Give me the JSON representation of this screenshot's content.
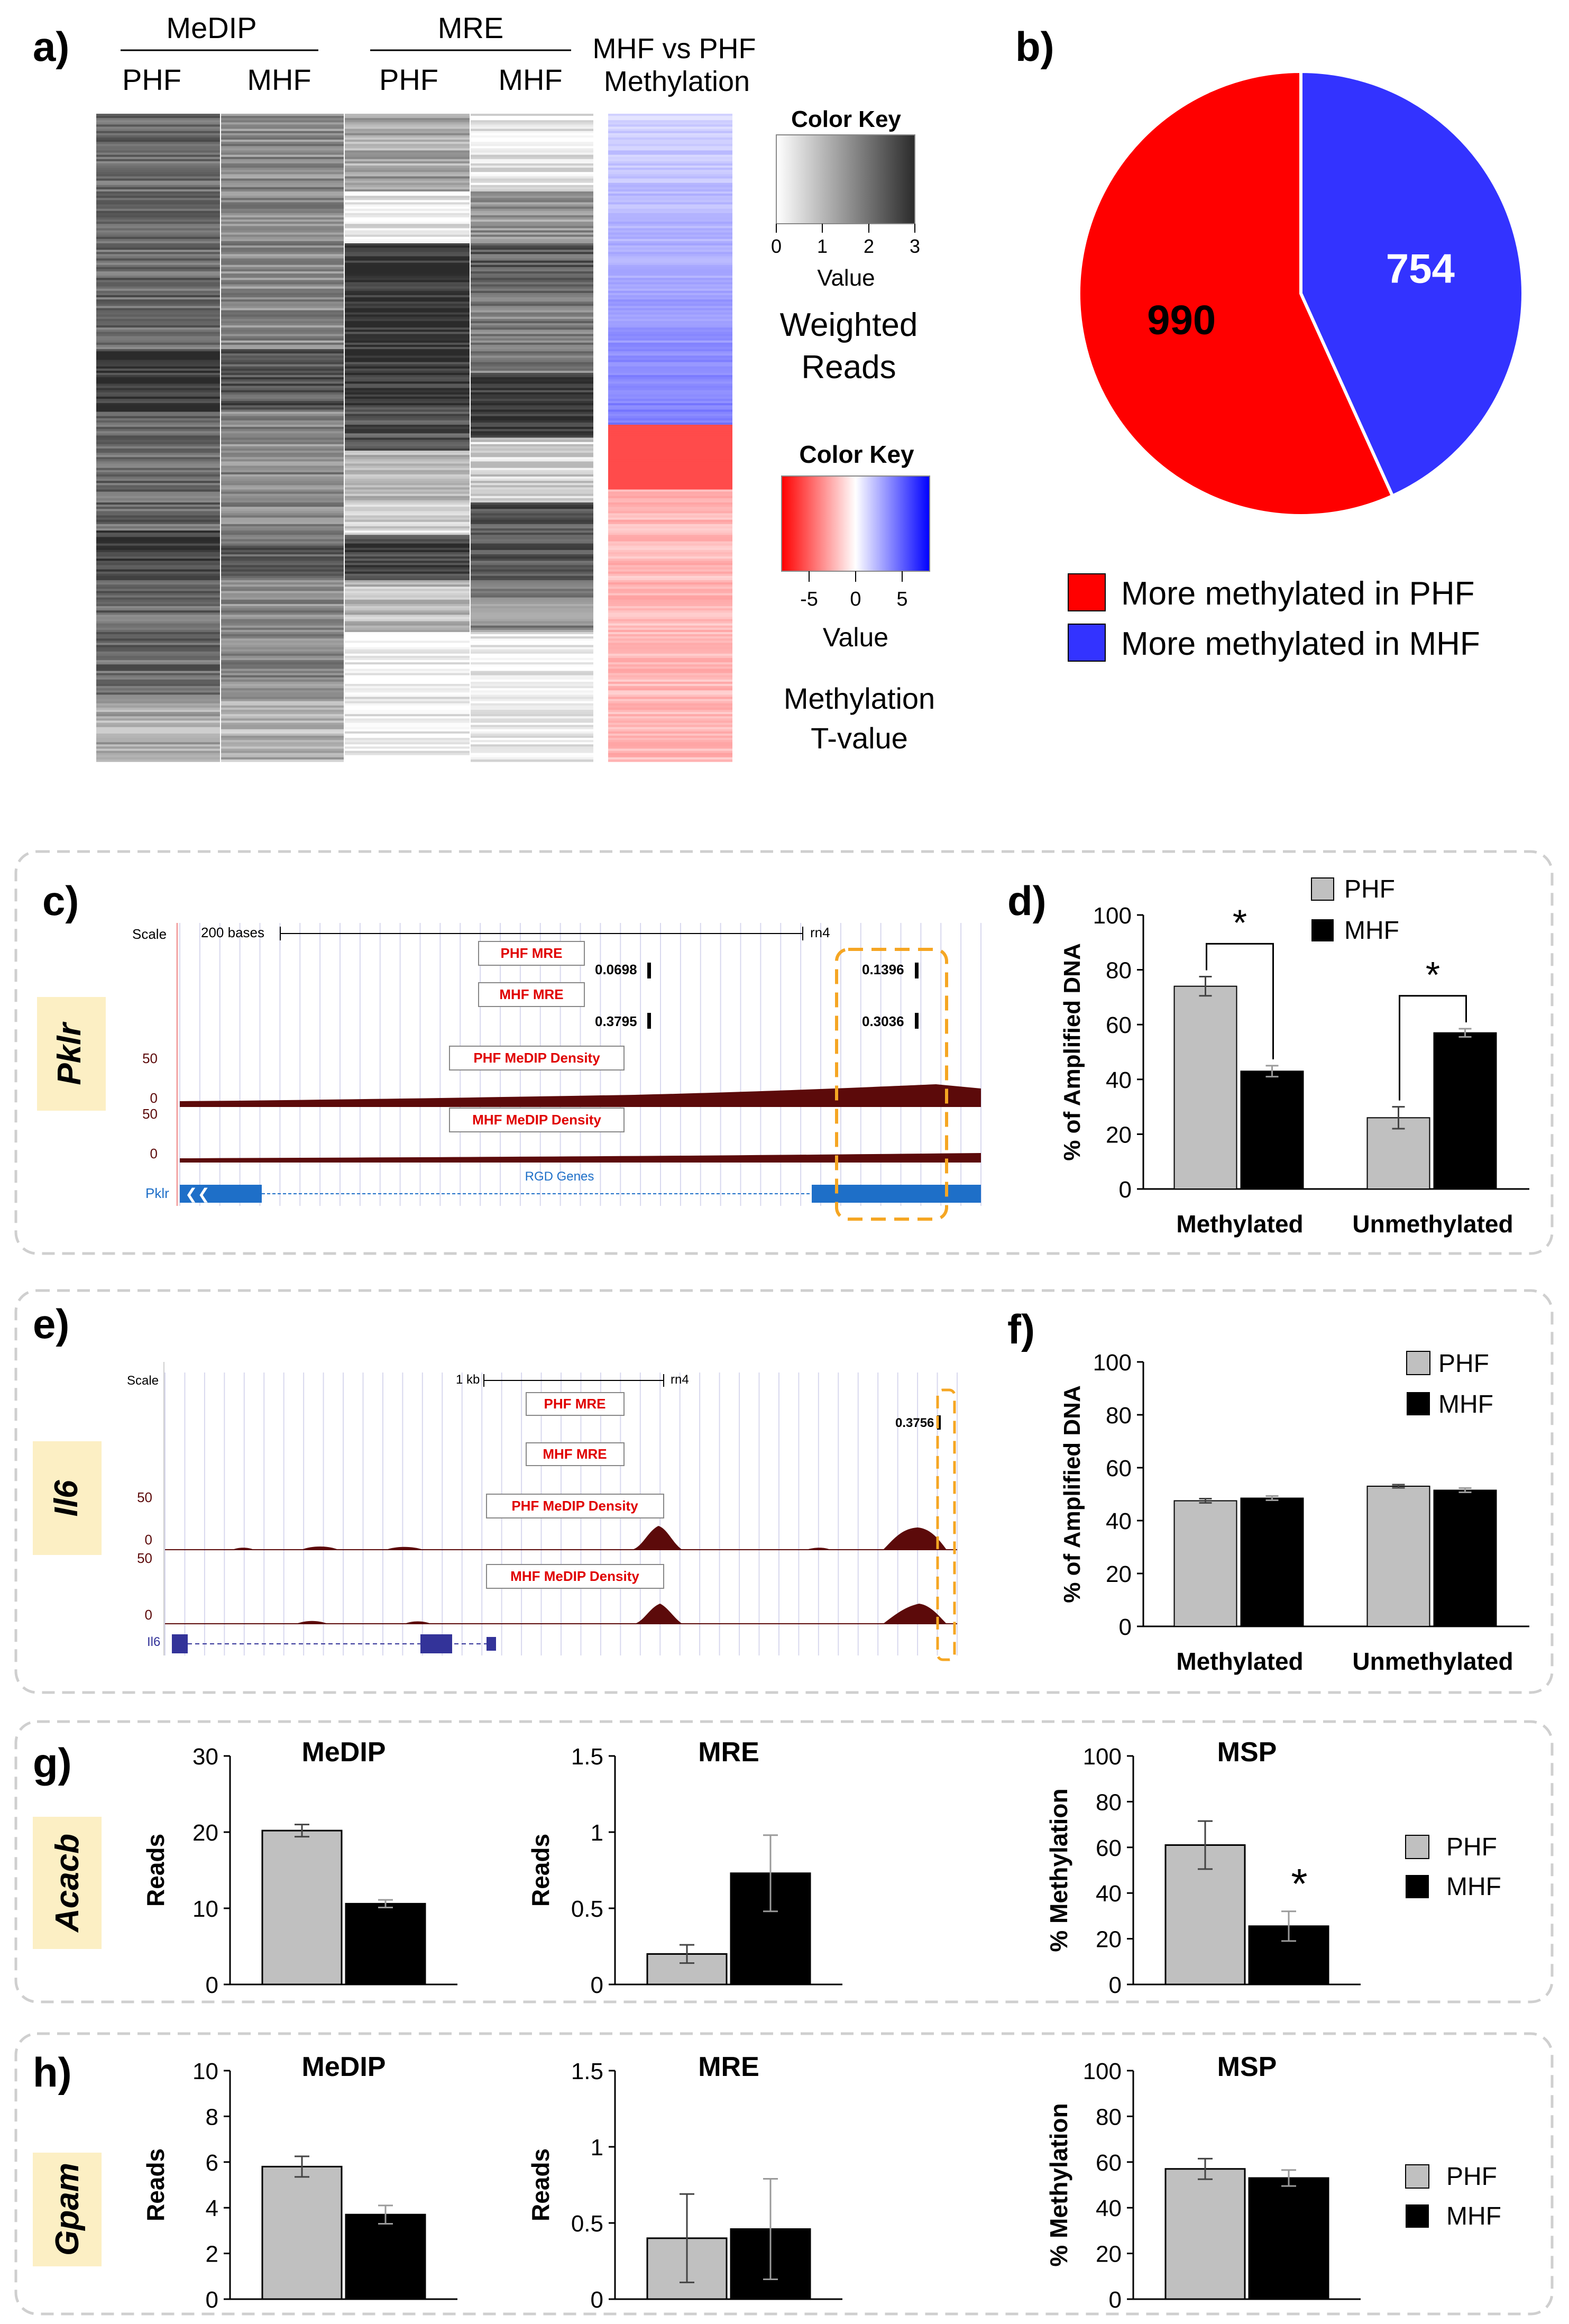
{
  "panel_letters": {
    "a": "a)",
    "b": "b)",
    "c": "c)",
    "d": "d)",
    "e": "e)",
    "f": "f)",
    "g": "g)",
    "h": "h)"
  },
  "heatmap": {
    "group_medip": "MeDIP",
    "group_mre": "MRE",
    "col_phf": "PHF",
    "col_mhf": "MHF",
    "tvalue_title_line1": "MHF vs PHF",
    "tvalue_title_line2": "Methylation",
    "key1": {
      "title": "Color Key",
      "ticks": [
        "0",
        "1",
        "2",
        "3"
      ],
      "xlabel": "Value",
      "caption_line1": "Weighted",
      "caption_line2": "Reads"
    },
    "key2": {
      "title": "Color Key",
      "ticks": [
        "-5",
        "0",
        "5"
      ],
      "xlabel": "Value",
      "caption_line1": "Methylation",
      "caption_line2": "T-value"
    },
    "colors": {
      "low": "#ffffff",
      "high": "#2b2b2b",
      "neg": "#ff0000",
      "mid": "#ffffff",
      "pos": "#0000ff"
    }
  },
  "browser_c": {
    "gene": "Pklr",
    "scale_label": "Scale",
    "scale_value": "200 bases",
    "assembly": "rn4",
    "tracks": {
      "phf_mre": "PHF MRE",
      "mhf_mre": "MHF MRE",
      "phf_medip": "PHF MeDIP Density",
      "mhf_medip": "MHF MeDIP Density",
      "genes": "RGD Genes"
    },
    "values": {
      "phf_mre_1": "0.0698",
      "phf_mre_2": "0.1396",
      "mhf_mre_1": "0.3795",
      "mhf_mre_2": "0.3036"
    },
    "axis_50": "50",
    "axis_0": "0",
    "gene_name": "Pklr"
  },
  "browser_e": {
    "gene": "Il6",
    "scale_label": "Scale",
    "scale_value": "1 kb",
    "assembly": "rn4",
    "tracks": {
      "phf_mre": "PHF MRE",
      "mhf_mre": "MHF MRE",
      "phf_medip": "PHF MeDIP Density",
      "mhf_medip": "MHF MeDIP Density"
    },
    "values": {
      "phf_mre_1": "0.3756"
    },
    "axis_50": "50",
    "axis_0": "0",
    "gene_name": "Il6"
  },
  "colors": {
    "phf_bar": "#c0c0c0",
    "mhf_bar": "#000000",
    "pie_red": "#ff0000",
    "pie_blue": "#3333ff",
    "dmr_box": "#f5a623",
    "gene_tag": "#fcefc4",
    "track": "#5c0a0a",
    "gene_blue": "#1e6fc8"
  },
  "chart_data": [
    {
      "id": "b",
      "type": "pie",
      "labels": [
        "More methylated in PHF",
        "More methylated in MHF"
      ],
      "values": [
        990,
        754
      ],
      "value_labels": [
        "990",
        "754"
      ],
      "colors": [
        "#ff0000",
        "#3333ff"
      ],
      "legend": "bottom"
    },
    {
      "id": "d",
      "type": "bar",
      "categories": [
        "Methylated",
        "Unmethylated"
      ],
      "series": [
        {
          "name": "PHF",
          "values": [
            74,
            26
          ],
          "errors": [
            3.5,
            4
          ]
        },
        {
          "name": "MHF",
          "values": [
            43,
            57
          ],
          "errors": [
            2,
            1.5
          ]
        }
      ],
      "ylabel": "% of Amplified DNA",
      "ylim": [
        0,
        100
      ],
      "yticks": [
        "0",
        "20",
        "40",
        "60",
        "80",
        "100"
      ],
      "significance": [
        "*",
        "*"
      ],
      "legend": "top-left"
    },
    {
      "id": "f",
      "type": "bar",
      "categories": [
        "Methylated",
        "Unmethylated"
      ],
      "series": [
        {
          "name": "PHF",
          "values": [
            47.5,
            53
          ],
          "errors": [
            0.8,
            0.6
          ]
        },
        {
          "name": "MHF",
          "values": [
            48.5,
            51.5
          ],
          "errors": [
            0.8,
            0.8
          ]
        }
      ],
      "ylabel": "% of Amplified DNA",
      "ylim": [
        0,
        100
      ],
      "yticks": [
        "0",
        "20",
        "40",
        "60",
        "80",
        "100"
      ],
      "legend": "top-right"
    },
    {
      "id": "g1",
      "type": "bar",
      "title": "MeDIP",
      "ylabel": "Reads",
      "ylim": [
        0,
        30
      ],
      "yticks": [
        "0",
        "10",
        "20",
        "30"
      ],
      "categories": [
        "PHF",
        "MHF"
      ],
      "values": [
        20.2,
        10.6
      ],
      "errors": [
        0.8,
        0.5
      ]
    },
    {
      "id": "g2",
      "type": "bar",
      "title": "MRE",
      "ylabel": "Reads",
      "ylim": [
        0,
        1.5
      ],
      "yticks": [
        "0",
        "0.5",
        "1",
        "1.5"
      ],
      "categories": [
        "PHF",
        "MHF"
      ],
      "values": [
        0.2,
        0.73
      ],
      "errors": [
        0.06,
        0.25
      ]
    },
    {
      "id": "g3",
      "type": "bar",
      "title": "MSP",
      "ylabel": "% Methylation",
      "ylim": [
        0,
        100
      ],
      "yticks": [
        "0",
        "20",
        "40",
        "60",
        "80",
        "100"
      ],
      "categories": [
        "PHF",
        "MHF"
      ],
      "values": [
        61,
        25.5
      ],
      "errors": [
        10.5,
        6.5
      ],
      "significance": "*"
    },
    {
      "id": "h1",
      "type": "bar",
      "title": "MeDIP",
      "ylabel": "Reads",
      "ylim": [
        0,
        10
      ],
      "yticks": [
        "0",
        "2",
        "4",
        "6",
        "8",
        "10"
      ],
      "categories": [
        "PHF",
        "MHF"
      ],
      "values": [
        5.8,
        3.7
      ],
      "errors": [
        0.45,
        0.4
      ]
    },
    {
      "id": "h2",
      "type": "bar",
      "title": "MRE",
      "ylabel": "Reads",
      "ylim": [
        0,
        1.5
      ],
      "yticks": [
        "0",
        "0.5",
        "1",
        "1.5"
      ],
      "categories": [
        "PHF",
        "MHF"
      ],
      "values": [
        0.4,
        0.46
      ],
      "errors": [
        0.29,
        0.33
      ]
    },
    {
      "id": "h3",
      "type": "bar",
      "title": "MSP",
      "ylabel": "% Methylation",
      "ylim": [
        0,
        100
      ],
      "yticks": [
        "0",
        "20",
        "40",
        "60",
        "80",
        "100"
      ],
      "categories": [
        "PHF",
        "MHF"
      ],
      "values": [
        57,
        53
      ],
      "errors": [
        4.5,
        3.5
      ]
    }
  ],
  "legend_gh": {
    "phf": "PHF",
    "mhf": "MHF"
  },
  "gene_labels": {
    "g": "Acacb",
    "h": "Gpam"
  }
}
